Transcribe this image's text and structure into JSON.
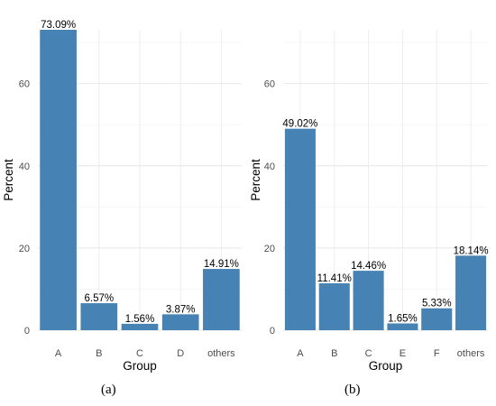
{
  "chart_data": [
    {
      "type": "bar",
      "caption": "(a)",
      "categories": [
        "A",
        "B",
        "C",
        "D",
        "others"
      ],
      "values": [
        73.09,
        6.57,
        1.56,
        3.87,
        14.91
      ],
      "labels": [
        "73.09%",
        "6.57%",
        "1.56%",
        "3.87%",
        "14.91%"
      ],
      "xlabel": "Group",
      "ylabel": "Percent",
      "ylim": [
        0,
        73.09
      ],
      "yticks": [
        0,
        20,
        40,
        60
      ],
      "grid": true,
      "bar_color": "#4682b4"
    },
    {
      "type": "bar",
      "caption": "(b)",
      "categories": [
        "A",
        "B",
        "C",
        "E",
        "F",
        "others"
      ],
      "values": [
        49.02,
        11.41,
        14.46,
        1.65,
        5.33,
        18.14
      ],
      "labels": [
        "49.02%",
        "11.41%",
        "14.46%",
        "1.65%",
        "5.33%",
        "18.14%"
      ],
      "xlabel": "Group",
      "ylabel": "Percent",
      "ylim": [
        0,
        73.09
      ],
      "yticks": [
        0,
        20,
        40,
        60
      ],
      "grid": true,
      "bar_color": "#4682b4"
    }
  ]
}
